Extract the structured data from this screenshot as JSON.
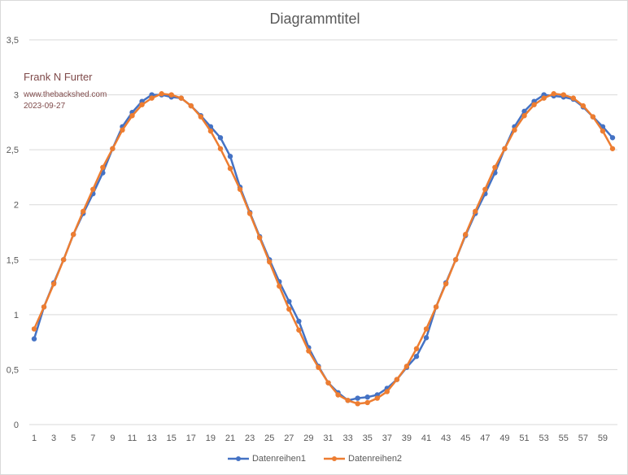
{
  "chart_data": {
    "type": "line",
    "title": "Diagrammtitel",
    "xlabel": "",
    "ylabel": "",
    "ylim": [
      0,
      3.5
    ],
    "yticks": [
      "0",
      "0,5",
      "1",
      "1,5",
      "2",
      "2,5",
      "3",
      "3,5"
    ],
    "xticks": [
      "1",
      "3",
      "5",
      "7",
      "9",
      "11",
      "13",
      "15",
      "17",
      "19",
      "21",
      "23",
      "25",
      "27",
      "29",
      "31",
      "33",
      "35",
      "37",
      "39",
      "41",
      "43",
      "45",
      "47",
      "49",
      "51",
      "53",
      "55",
      "57",
      "59"
    ],
    "grid": true,
    "legend_position": "bottom",
    "x": [
      1,
      2,
      3,
      4,
      5,
      6,
      7,
      8,
      9,
      10,
      11,
      12,
      13,
      14,
      15,
      16,
      17,
      18,
      19,
      20,
      21,
      22,
      23,
      24,
      25,
      26,
      27,
      28,
      29,
      30,
      31,
      32,
      33,
      34,
      35,
      36,
      37,
      38,
      39,
      40,
      41,
      42,
      43,
      44,
      45,
      46,
      47,
      48,
      49,
      50,
      51,
      52,
      53,
      54,
      55,
      56,
      57,
      58,
      59,
      60
    ],
    "series": [
      {
        "name": "Datenreihen1",
        "color": "#4472c4",
        "values": [
          0.78,
          1.07,
          1.29,
          1.5,
          1.73,
          1.92,
          2.1,
          2.29,
          2.51,
          2.71,
          2.84,
          2.94,
          3.0,
          3.0,
          2.98,
          2.97,
          2.9,
          2.81,
          2.71,
          2.61,
          2.44,
          2.16,
          1.93,
          1.71,
          1.5,
          1.3,
          1.12,
          0.94,
          0.7,
          0.53,
          0.38,
          0.29,
          0.22,
          0.24,
          0.25,
          0.27,
          0.33,
          0.41,
          0.52,
          0.62,
          0.79,
          1.07,
          1.29,
          1.5,
          1.72,
          1.92,
          2.1,
          2.29,
          2.51,
          2.71,
          2.85,
          2.94,
          3.0,
          2.99,
          2.98,
          2.96,
          2.89,
          2.8,
          2.71,
          2.61
        ]
      },
      {
        "name": "Datenreihen2",
        "color": "#ed7d31",
        "values": [
          0.87,
          1.07,
          1.28,
          1.5,
          1.73,
          1.94,
          2.14,
          2.34,
          2.51,
          2.68,
          2.81,
          2.91,
          2.97,
          3.01,
          3.0,
          2.97,
          2.9,
          2.8,
          2.67,
          2.51,
          2.33,
          2.14,
          1.92,
          1.7,
          1.48,
          1.26,
          1.05,
          0.86,
          0.67,
          0.52,
          0.38,
          0.27,
          0.22,
          0.19,
          0.2,
          0.24,
          0.3,
          0.41,
          0.53,
          0.69,
          0.87,
          1.07,
          1.28,
          1.5,
          1.73,
          1.94,
          2.14,
          2.34,
          2.51,
          2.68,
          2.81,
          2.91,
          2.97,
          3.01,
          3.0,
          2.97,
          2.9,
          2.8,
          2.67,
          2.51
        ]
      }
    ]
  },
  "annotation": {
    "name": "Frank N Furter",
    "site": "www.thebackshed.com",
    "date": "2023-09-27"
  }
}
